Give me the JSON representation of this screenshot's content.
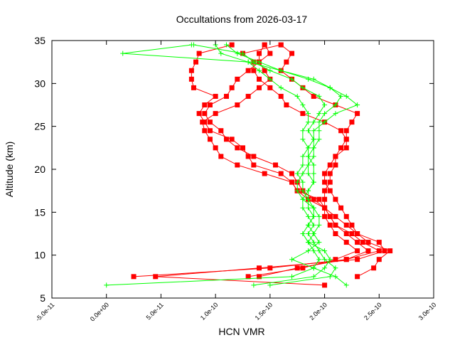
{
  "chart_data": {
    "type": "line",
    "title": "Occultations from 2026-03-17",
    "xlabel": "HCN VMR",
    "ylabel": "Altitude (km)",
    "xlim": [
      -5e-11,
      3e-10
    ],
    "ylim": [
      5,
      35
    ],
    "xticks": [
      -5e-11,
      0,
      5e-11,
      1e-10,
      1.5e-10,
      2e-10,
      2.5e-10,
      3e-10
    ],
    "xtick_labels": [
      "-5.0e-11",
      "0.0e+00",
      "5.0e-11",
      "1.0e-10",
      "1.5e-10",
      "2.0e-10",
      "2.5e-10",
      "3.0e-10"
    ],
    "yticks": [
      5,
      10,
      15,
      20,
      25,
      30,
      35
    ],
    "ytick_labels": [
      "5",
      "10",
      "15",
      "20",
      "25",
      "30",
      "35"
    ],
    "grid": false,
    "legend": "none",
    "altitudes": [
      6.5,
      7.5,
      8.5,
      9.5,
      10.5,
      11.5,
      12.5,
      13.5,
      14.5,
      15.5,
      16.5,
      17.5,
      18.5,
      19.5,
      20.5,
      21.5,
      22.5,
      23.5,
      24.5,
      25.5,
      26.5,
      27.5,
      28.5,
      29.5,
      30.5,
      31.5,
      32.5,
      33.5,
      34.5
    ],
    "series": [
      {
        "color": "#ff0000",
        "marker": "square",
        "values": [
          null,
          2.5e-11,
          1.5e-10,
          2.2e-10,
          2.4e-10,
          2.3e-10,
          2.2e-10,
          2.1e-10,
          2.05e-10,
          2e-10,
          1.95e-10,
          1.75e-10,
          1.7e-10,
          1.6e-10,
          1.35e-10,
          1.3e-10,
          1.25e-10,
          1.15e-10,
          9.5e-11,
          9e-11,
          8.5e-11,
          9e-11,
          1e-10,
          8e-11,
          7.8e-11,
          7.8e-11,
          8.2e-11,
          8.5e-11,
          1.15e-10
        ]
      },
      {
        "color": "#ff0000",
        "marker": "square",
        "values": [
          2e-10,
          4.5e-11,
          1.4e-10,
          2.3e-10,
          2.55e-10,
          2.5e-10,
          2.3e-10,
          2.25e-10,
          2.2e-10,
          2.15e-10,
          2.1e-10,
          2.05e-10,
          2e-10,
          2e-10,
          2.05e-10,
          2.1e-10,
          2.15e-10,
          2.2e-10,
          2.2e-10,
          2.25e-10,
          2.3e-10,
          2.1e-10,
          1.9e-10,
          1.8e-10,
          1.7e-10,
          1.6e-10,
          1.65e-10,
          1.7e-10,
          1.6e-10
        ]
      },
      {
        "color": "#ff0000",
        "marker": "square",
        "values": [
          null,
          2.3e-10,
          2.45e-10,
          2.5e-10,
          2.6e-10,
          2.4e-10,
          2.3e-10,
          2.2e-10,
          2.1e-10,
          2e-10,
          1.85e-10,
          1.75e-10,
          1.7e-10,
          1.45e-10,
          1.2e-10,
          1.05e-10,
          1e-10,
          9.5e-11,
          9e-11,
          8.8e-11,
          1e-10,
          1.2e-10,
          1.3e-10,
          1.4e-10,
          1.5e-10,
          1.45e-10,
          1.4e-10,
          1.5e-10,
          1.45e-10
        ]
      },
      {
        "color": "#ff0000",
        "marker": "square",
        "values": [
          null,
          1.3e-10,
          1.8e-10,
          2.1e-10,
          2.3e-10,
          2.2e-10,
          2.1e-10,
          2.05e-10,
          2e-10,
          2e-10,
          2e-10,
          2e-10,
          2.05e-10,
          2.05e-10,
          2.1e-10,
          2.1e-10,
          2.2e-10,
          2.2e-10,
          2.15e-10,
          2e-10,
          1.8e-10,
          1.65e-10,
          1.6e-10,
          1.5e-10,
          1.4e-10,
          1.35e-10,
          1.35e-10,
          1.25e-10,
          1.6e-10
        ]
      },
      {
        "color": "#ff0000",
        "marker": "square",
        "values": [
          null,
          1.4e-10,
          1.75e-10,
          2.2e-10,
          2.5e-10,
          2.35e-10,
          2.25e-10,
          2.1e-10,
          2.05e-10,
          2e-10,
          1.9e-10,
          1.8e-10,
          1.75e-10,
          1.7e-10,
          1.55e-10,
          1.35e-10,
          1.2e-10,
          1.1e-10,
          1.05e-10,
          9.5e-11,
          9e-11,
          9.5e-11,
          1.1e-10,
          1.15e-10,
          1.2e-10,
          1.3e-10,
          1.4e-10,
          1.4e-10,
          1.45e-10
        ]
      },
      {
        "color": "#00ff00",
        "marker": "plus",
        "values": [
          0.0,
          1.7e-10,
          1.9e-10,
          1.95e-10,
          1.9e-10,
          1.85e-10,
          1.9e-10,
          1.85e-10,
          1.9e-10,
          1.85e-10,
          1.85e-10,
          1.8e-10,
          1.8e-10,
          1.75e-10,
          1.8e-10,
          1.8e-10,
          1.85e-10,
          1.8e-10,
          1.8e-10,
          1.85e-10,
          1.85e-10,
          1.8e-10,
          1.75e-10,
          1.6e-10,
          1.5e-10,
          1.4e-10,
          1.3e-10,
          1.5e-11,
          7.8e-11
        ]
      },
      {
        "color": "#00ff00",
        "marker": "plus",
        "values": [
          1.35e-10,
          1.9e-10,
          2e-10,
          2.05e-10,
          2e-10,
          1.85e-10,
          1.8e-10,
          1.85e-10,
          1.9e-10,
          1.9e-10,
          1.85e-10,
          1.85e-10,
          1.9e-10,
          1.9e-10,
          1.9e-10,
          1.85e-10,
          1.85e-10,
          1.9e-10,
          1.9e-10,
          2e-10,
          2.1e-10,
          2.3e-10,
          2.2e-10,
          2.05e-10,
          1.9e-10,
          1.6e-10,
          1.3e-10,
          1.05e-10,
          1e-10
        ]
      },
      {
        "color": "#00ff00",
        "marker": "plus",
        "values": [
          2.2e-10,
          2.1e-10,
          1.9e-10,
          1.7e-10,
          1.85e-10,
          1.95e-10,
          1.9e-10,
          1.95e-10,
          1.95e-10,
          1.9e-10,
          1.8e-10,
          1.75e-10,
          1.75e-10,
          1.8e-10,
          1.85e-10,
          1.9e-10,
          1.9e-10,
          1.95e-10,
          1.95e-10,
          1.95e-10,
          2e-10,
          2.1e-10,
          2.15e-10,
          2.05e-10,
          1.85e-10,
          1.6e-10,
          1.4e-10,
          1.2e-10,
          1.1e-10
        ]
      },
      {
        "color": "#00ff00",
        "marker": "plus",
        "values": [
          1.5e-10,
          2.05e-10,
          2.1e-10,
          2e-10,
          1.95e-10,
          1.9e-10,
          1.85e-10,
          1.9e-10,
          1.85e-10,
          1.8e-10,
          1.8e-10,
          1.85e-10,
          1.9e-10,
          1.85e-10,
          1.85e-10,
          1.85e-10,
          1.9e-10,
          1.9e-10,
          1.85e-10,
          1.9e-10,
          1.95e-10,
          2e-10,
          1.95e-10,
          1.8e-10,
          1.7e-10,
          1.5e-10,
          1.35e-10,
          1.25e-10,
          8e-11
        ]
      }
    ]
  }
}
